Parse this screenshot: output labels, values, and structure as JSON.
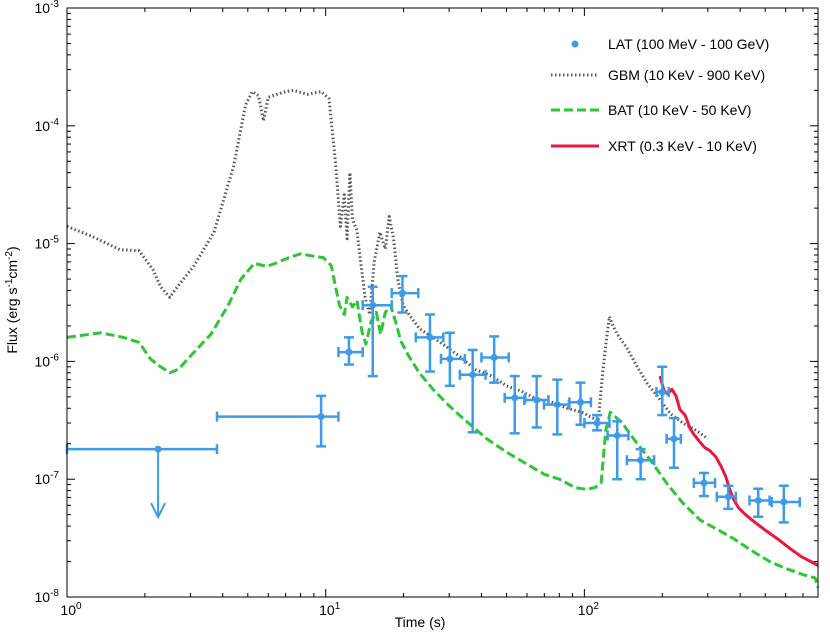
{
  "chart_data": {
    "type": "scatter",
    "xscale": "log",
    "yscale": "log",
    "xlim": [
      1,
      800
    ],
    "ylim": [
      1e-08,
      0.001
    ],
    "xlabel": "Time (s)",
    "ylabel_parts": {
      "prefix": "Flux (erg s",
      "sup1": "-1",
      "mid": "cm",
      "sup2": "-2",
      "suffix": ")"
    },
    "x_ticks": [
      {
        "value": 1,
        "base": "10",
        "exp": "0"
      },
      {
        "value": 10,
        "base": "10",
        "exp": "1"
      },
      {
        "value": 100,
        "base": "10",
        "exp": "2"
      }
    ],
    "y_ticks": [
      {
        "value": 1e-08,
        "base": "10",
        "exp": "-8"
      },
      {
        "value": 1e-07,
        "base": "10",
        "exp": "-7"
      },
      {
        "value": 1e-06,
        "base": "10",
        "exp": "-6"
      },
      {
        "value": 1e-05,
        "base": "10",
        "exp": "-5"
      },
      {
        "value": 0.0001,
        "base": "10",
        "exp": "-4"
      },
      {
        "value": 0.001,
        "base": "10",
        "exp": "-3"
      }
    ],
    "legend_placement": "top-right",
    "series": [
      {
        "name": "LAT (100 MeV - 100 GeV)",
        "kind": "points",
        "color": "#3d9be9",
        "points": [
          {
            "x": 2.25,
            "y": 1.8e-07,
            "xerr": [
              1.0,
              3.8
            ],
            "upper_limit": true
          },
          {
            "x": 9.6,
            "y": 3.4e-07,
            "xerr": [
              3.8,
              11.2
            ],
            "yerr": [
              1.9e-07,
              5.1e-07
            ]
          },
          {
            "x": 12.3,
            "y": 1.2e-06,
            "xerr": [
              11.2,
              13.9
            ],
            "yerr": [
              9.4e-07,
              1.6e-06
            ]
          },
          {
            "x": 15.2,
            "y": 3e-06,
            "xerr": [
              13.9,
              18.0
            ],
            "yerr": [
              7.5e-07,
              4.3e-06
            ]
          },
          {
            "x": 19.8,
            "y": 3.8e-06,
            "xerr": [
              18.0,
              22.8
            ],
            "yerr": [
              2.6e-06,
              5.3e-06
            ]
          },
          {
            "x": 25.3,
            "y": 1.6e-06,
            "xerr": [
              22.3,
              28.5
            ],
            "yerr": [
              8.2e-07,
              2.5e-06
            ]
          },
          {
            "x": 30.2,
            "y": 1.05e-06,
            "xerr": [
              27.9,
              34.5
            ],
            "yerr": [
              6.2e-07,
              1.75e-06
            ]
          },
          {
            "x": 37.0,
            "y": 7.7e-07,
            "xerr": [
              33.0,
              41.5
            ],
            "yerr": [
              2.5e-07,
              1.25e-06
            ]
          },
          {
            "x": 44.8,
            "y": 1.08e-06,
            "xerr": [
              40.0,
              51.0
            ],
            "yerr": [
              6.6e-07,
              1.63e-06
            ]
          },
          {
            "x": 53.8,
            "y": 4.9e-07,
            "xerr": [
              49.2,
              59.1
            ],
            "yerr": [
              2.45e-07,
              7.5e-07
            ]
          },
          {
            "x": 65.4,
            "y": 4.7e-07,
            "xerr": [
              58.6,
              72.6
            ],
            "yerr": [
              2.75e-07,
              7.5e-07
            ]
          },
          {
            "x": 78.6,
            "y": 4.3e-07,
            "xerr": [
              69.8,
              87.1
            ],
            "yerr": [
              2.4e-07,
              7e-07
            ]
          },
          {
            "x": 96.6,
            "y": 4.5e-07,
            "xerr": [
              87.6,
              106.0
            ],
            "yerr": [
              2.9e-07,
              6.6e-07
            ]
          },
          {
            "x": 112.0,
            "y": 3e-07,
            "xerr": [
              100.0,
              125.0
            ],
            "yerr": [
              2.6e-07,
              3.5e-07
            ]
          },
          {
            "x": 134.0,
            "y": 2.35e-07,
            "xerr": [
              123.0,
              148.0
            ],
            "yerr": [
              1e-07,
              3.1e-07
            ]
          },
          {
            "x": 165.0,
            "y": 1.45e-07,
            "xerr": [
              146.0,
              186.0
            ],
            "yerr": [
              1e-07,
              1.8e-07
            ]
          },
          {
            "x": 200.0,
            "y": 5.5e-07,
            "xerr": [
              190.0,
              212.0
            ],
            "yerr": [
              3.5e-07,
              9e-07
            ]
          },
          {
            "x": 222.0,
            "y": 2.2e-07,
            "xerr": [
              208.0,
              236.0
            ],
            "yerr": [
              1.25e-07,
              3.3e-07
            ]
          },
          {
            "x": 290.0,
            "y": 9.3e-08,
            "xerr": [
              265.0,
              320.0
            ],
            "yerr": [
              7.2e-08,
              1.13e-07
            ]
          },
          {
            "x": 360.0,
            "y": 7.1e-08,
            "xerr": [
              325.0,
              385.0
            ],
            "yerr": [
              5.6e-08,
              8.8e-08
            ]
          },
          {
            "x": 470.0,
            "y": 6.6e-08,
            "xerr": [
              435.0,
              520.0
            ],
            "yerr": [
              4.8e-08,
              8.3e-08
            ]
          },
          {
            "x": 590.0,
            "y": 6.4e-08,
            "xerr": [
              530.0,
              680.0
            ],
            "yerr": [
              4.3e-08,
              8.8e-08
            ]
          }
        ]
      },
      {
        "name": "GBM (10 KeV - 900 KeV)",
        "kind": "line",
        "style": "dotted",
        "color": "#555555",
        "points": [
          [
            1.0,
            1.4e-05
          ],
          [
            1.25,
            1.15e-05
          ],
          [
            1.6,
            8.9e-06
          ],
          [
            1.9,
            8.7e-06
          ],
          [
            2.15,
            6e-06
          ],
          [
            2.3,
            4.3e-06
          ],
          [
            2.5,
            3.5e-06
          ],
          [
            2.65,
            4.2e-06
          ],
          [
            3.1,
            6.5e-06
          ],
          [
            3.7,
            1.25e-05
          ],
          [
            4.4,
            4.5e-05
          ],
          [
            4.9,
            0.00015
          ],
          [
            5.2,
            0.000195
          ],
          [
            5.5,
            0.00018
          ],
          [
            5.75,
            0.00011
          ],
          [
            6.0,
            0.000175
          ],
          [
            7.0,
            0.000195
          ],
          [
            7.5,
            0.0002
          ],
          [
            8.5,
            0.000185
          ],
          [
            9.6,
            0.000195
          ],
          [
            10.3,
            0.00017
          ],
          [
            10.9,
            5e-05
          ],
          [
            11.4,
            1.4e-05
          ],
          [
            11.8,
            2.6e-05
          ],
          [
            12.1,
            1.1e-05
          ],
          [
            12.4,
            4e-05
          ],
          [
            12.7,
            1.6e-05
          ],
          [
            13.2,
            1.3e-05
          ],
          [
            13.7,
            6.5e-06
          ],
          [
            14.2,
            3.5e-06
          ],
          [
            14.8,
            2.5e-06
          ],
          [
            15.4,
            7e-06
          ],
          [
            16.2,
            1.25e-05
          ],
          [
            17.0,
            9e-06
          ],
          [
            17.6,
            1.7e-05
          ],
          [
            18.3,
            1.1e-05
          ],
          [
            19.0,
            5e-06
          ],
          [
            19.9,
            3e-06
          ],
          [
            21.0,
            2.5e-06
          ],
          [
            23.0,
            1.9e-06
          ],
          [
            26.0,
            1.6e-06
          ],
          [
            29.0,
            1.35e-06
          ],
          [
            33.0,
            1.1e-06
          ],
          [
            38.0,
            8.5e-07
          ],
          [
            44.0,
            7.5e-07
          ],
          [
            50.0,
            6.2e-07
          ],
          [
            57.0,
            5.6e-07
          ],
          [
            65.0,
            4.8e-07
          ],
          [
            75.0,
            4.5e-07
          ],
          [
            86.0,
            4e-07
          ],
          [
            98.0,
            3.7e-07
          ],
          [
            108.0,
            3.3e-07
          ],
          [
            113.0,
            3.1e-07
          ],
          [
            118.0,
            8.5e-07
          ],
          [
            122.0,
            1.6e-06
          ],
          [
            125.0,
            2.4e-06
          ],
          [
            129.0,
            2e-06
          ],
          [
            134.0,
            1.7e-06
          ],
          [
            146.0,
            1.3e-06
          ],
          [
            160.0,
            9e-07
          ],
          [
            175.0,
            6.5e-07
          ],
          [
            195.0,
            4.8e-07
          ],
          [
            215.0,
            3.6e-07
          ],
          [
            240.0,
            3e-07
          ],
          [
            270.0,
            2.6e-07
          ],
          [
            300.0,
            2.2e-07
          ]
        ]
      },
      {
        "name": "BAT (10 KeV - 50 KeV)",
        "kind": "line",
        "style": "dashed",
        "color": "#2ec635",
        "points": [
          [
            1.0,
            1.6e-06
          ],
          [
            1.35,
            1.75e-06
          ],
          [
            1.65,
            1.6e-06
          ],
          [
            1.9,
            1.45e-06
          ],
          [
            2.1,
            1.05e-06
          ],
          [
            2.3,
            9e-07
          ],
          [
            2.5,
            8e-07
          ],
          [
            2.7,
            8.6e-07
          ],
          [
            3.1,
            1.2e-06
          ],
          [
            3.6,
            1.7e-06
          ],
          [
            4.2,
            3e-06
          ],
          [
            4.7,
            5e-06
          ],
          [
            5.3,
            6.8e-06
          ],
          [
            5.9,
            6.4e-06
          ],
          [
            6.4,
            6.8e-06
          ],
          [
            7.2,
            7.6e-06
          ],
          [
            8.0,
            8.2e-06
          ],
          [
            9.0,
            7.8e-06
          ],
          [
            9.8,
            7.6e-06
          ],
          [
            10.5,
            6.5e-06
          ],
          [
            11.3,
            3e-06
          ],
          [
            11.8,
            2.5e-06
          ],
          [
            12.1,
            3.5e-06
          ],
          [
            12.7,
            2.9e-06
          ],
          [
            13.2,
            3.3e-06
          ],
          [
            13.8,
            1.8e-06
          ],
          [
            14.3,
            1.4e-06
          ],
          [
            15.0,
            2.2e-06
          ],
          [
            15.7,
            2.6e-06
          ],
          [
            16.3,
            1.7e-06
          ],
          [
            17.0,
            2.6e-06
          ],
          [
            17.8,
            3e-06
          ],
          [
            18.6,
            2.2e-06
          ],
          [
            19.5,
            1.5e-06
          ],
          [
            21.0,
            1.1e-06
          ],
          [
            23.0,
            8e-07
          ],
          [
            26.0,
            5.8e-07
          ],
          [
            30.0,
            4.2e-07
          ],
          [
            35.0,
            3.1e-07
          ],
          [
            42.0,
            2.2e-07
          ],
          [
            50.0,
            1.7e-07
          ],
          [
            58.0,
            1.4e-07
          ],
          [
            70.0,
            1.1e-07
          ],
          [
            80.0,
            1e-07
          ],
          [
            92.0,
            8.5e-08
          ],
          [
            102.0,
            8.2e-08
          ],
          [
            110.0,
            8.5e-08
          ],
          [
            116.0,
            9.3e-08
          ],
          [
            121.0,
            2.6e-07
          ],
          [
            126.0,
            3.7e-07
          ],
          [
            140.0,
            3e-07
          ],
          [
            160.0,
            2e-07
          ],
          [
            180.0,
            1.45e-07
          ],
          [
            210.0,
            9e-08
          ],
          [
            240.0,
            6.3e-08
          ],
          [
            280.0,
            4.5e-08
          ],
          [
            330.0,
            3.7e-08
          ],
          [
            380.0,
            3.1e-08
          ],
          [
            440.0,
            2.5e-08
          ],
          [
            520.0,
            2e-08
          ],
          [
            600.0,
            1.75e-08
          ],
          [
            700.0,
            1.55e-08
          ],
          [
            780.0,
            1.45e-08
          ],
          [
            800.0,
            1.2e-08
          ]
        ]
      },
      {
        "name": "XRT (0.3 KeV - 10 KeV)",
        "kind": "line",
        "style": "solid",
        "color": "#e8193c",
        "points": [
          [
            196.0,
            7.5e-07
          ],
          [
            203.0,
            5.7e-07
          ],
          [
            210.0,
            5.3e-07
          ],
          [
            218.0,
            5.8e-07
          ],
          [
            226.0,
            5.1e-07
          ],
          [
            234.0,
            3.9e-07
          ],
          [
            245.0,
            3.5e-07
          ],
          [
            256.0,
            2.7e-07
          ],
          [
            265.0,
            2.4e-07
          ],
          [
            278.0,
            2.1e-07
          ],
          [
            292.0,
            1.85e-07
          ],
          [
            305.0,
            1.75e-07
          ],
          [
            322.0,
            1.55e-07
          ],
          [
            338.0,
            1.28e-07
          ],
          [
            352.0,
            1.05e-07
          ],
          [
            366.0,
            8e-08
          ],
          [
            378.0,
            6.7e-08
          ],
          [
            395.0,
            5.7e-08
          ],
          [
            420.0,
            5e-08
          ],
          [
            450.0,
            4.4e-08
          ],
          [
            500.0,
            3.7e-08
          ],
          [
            560.0,
            3.1e-08
          ],
          [
            620.0,
            2.6e-08
          ],
          [
            690.0,
            2.2e-08
          ],
          [
            750.0,
            2e-08
          ],
          [
            800.0,
            1.85e-08
          ]
        ]
      }
    ]
  }
}
